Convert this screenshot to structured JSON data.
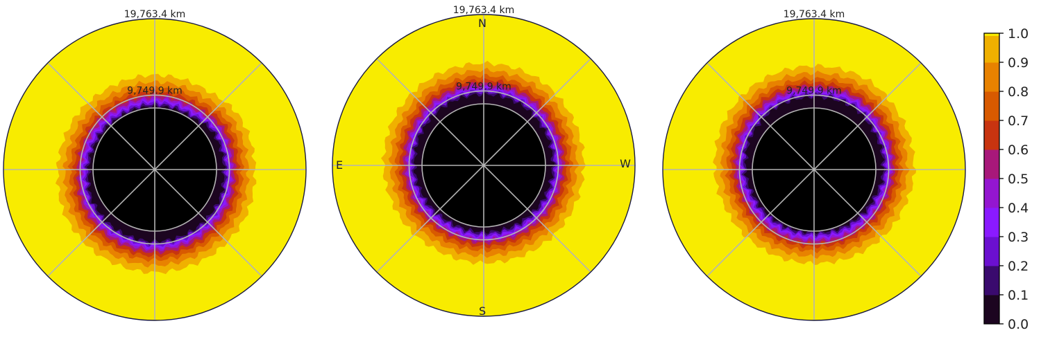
{
  "chart_data": {
    "type": "heatmap",
    "projection": "polar",
    "panels": [
      {
        "radial_labels": [
          "19,763.4 km",
          "9,749.9 km"
        ],
        "direction_labels": null,
        "zero_contour_radius_km": [
          9000,
          9000,
          8300,
          8300,
          8200,
          8400,
          8600,
          9100,
          9300,
          9400,
          9350,
          9300
        ]
      },
      {
        "radial_labels": [
          "19,763.4 km",
          "9,749.9 km"
        ],
        "direction_labels": {
          "north": "N",
          "south": "S",
          "east": "E",
          "west": "W"
        },
        "zero_contour_radius_km": [
          9000,
          9100,
          9300,
          9300,
          9300,
          9200,
          9000,
          8800,
          8600,
          8700,
          8800,
          8900
        ]
      },
      {
        "radial_labels": [
          "19,763.4 km",
          "9,749.9 km"
        ],
        "direction_labels": null,
        "zero_contour_radius_km": [
          9000,
          9200,
          9600,
          9500,
          9500,
          9300,
          8900,
          8500,
          8300,
          8200,
          8400,
          8600
        ]
      }
    ],
    "colorbar": {
      "min": 0.0,
      "max": 1.0,
      "ticks": [
        "0.0",
        "0.1",
        "0.2",
        "0.3",
        "0.4",
        "0.5",
        "0.6",
        "0.7",
        "0.8",
        "0.9",
        "1.0"
      ],
      "colors": [
        "#1c0520",
        "#3a0a6e",
        "#6b10d0",
        "#8a1aff",
        "#9416d0",
        "#a8187a",
        "#c83410",
        "#d85a00",
        "#e88200",
        "#f0b000",
        "#f8ec00"
      ]
    },
    "colormap": "gnuplot2",
    "grid": true,
    "inner_mask_color": "#000000",
    "background_color": "#f8ec00"
  }
}
